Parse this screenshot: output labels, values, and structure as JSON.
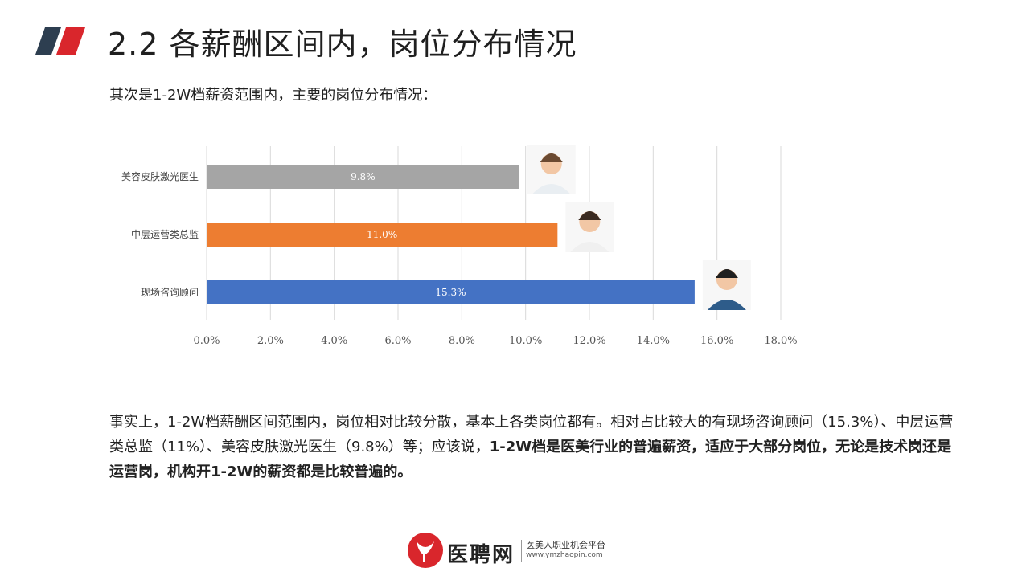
{
  "header": {
    "title": "2.2 各薪酬区间内，岗位分布情况",
    "subtitle": "其次是1-2W档薪资范围内，主要的岗位分布情况："
  },
  "colors": {
    "accent_dark": "#2d3e50",
    "accent_red": "#d9262c",
    "bar_gray": "#a5a5a5",
    "bar_orange": "#ed7d31",
    "bar_blue": "#4472c4",
    "grid": "#d9d9d9"
  },
  "chart_data": {
    "type": "bar",
    "orientation": "horizontal",
    "categories": [
      "美容皮肤激光医生",
      "中层运营类总监",
      "现场咨询顾问"
    ],
    "values": [
      9.8,
      11.0,
      15.3
    ],
    "data_labels": [
      "9.8%",
      "11.0%",
      "15.3%"
    ],
    "xlim": [
      0,
      18
    ],
    "xticks": [
      "0.0%",
      "2.0%",
      "4.0%",
      "6.0%",
      "8.0%",
      "10.0%",
      "12.0%",
      "14.0%",
      "16.0%",
      "18.0%"
    ],
    "grid": true,
    "bar_colors": [
      "#a5a5a5",
      "#ed7d31",
      "#4472c4"
    ],
    "icons": [
      "doctor-icon",
      "director-icon",
      "consultant-icon"
    ]
  },
  "body": {
    "part1": "事实上，1-2W档薪酬区间范围内，岗位相对比较分散，基本上各类岗位都有。相对占比较大的有现场咨询顾问（15.3%）、中层运营类总监（11%）、美容皮肤激光医生（9.8%）等；应该说，",
    "part2_bold": "1-2W档是医美行业的普遍薪资，适应于大部分岗位，无论是技术岗还是运营岗，机构开1-2W的薪资都是比较普遍的。"
  },
  "footer": {
    "brand": "医聘网",
    "slogan": "医美人职业机会平台",
    "url": "www.ymzhaopin.com"
  }
}
